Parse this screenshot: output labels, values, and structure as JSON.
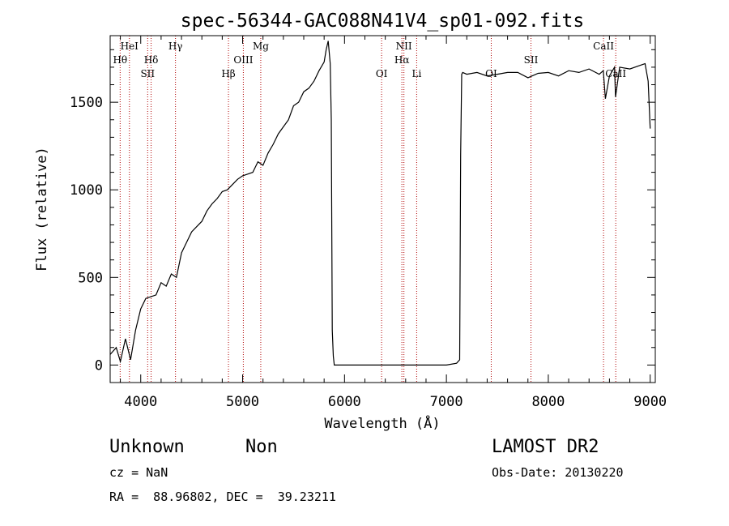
{
  "chart_data": {
    "type": "line",
    "title": "spec-56344-GAC088N41V4_sp01-092.fits",
    "xlabel": "Wavelength (Å)",
    "ylabel": "Flux (relative)",
    "xlim": [
      3700,
      9050
    ],
    "ylim": [
      -100,
      1880
    ],
    "xticks": [
      4000,
      5000,
      6000,
      7000,
      8000,
      9000
    ],
    "xtick_labels": [
      "4000",
      "5000",
      "6000",
      "7000",
      "8000",
      "9000"
    ],
    "yticks": [
      0,
      500,
      1000,
      1500
    ],
    "ytick_labels": [
      "0",
      "500",
      "1000",
      "1500"
    ],
    "grid": false,
    "legend": "none",
    "series": [
      {
        "color": "#000000",
        "x": [
          3700,
          3760,
          3800,
          3850,
          3900,
          3950,
          4000,
          4050,
          4100,
          4150,
          4200,
          4250,
          4300,
          4350,
          4400,
          4450,
          4500,
          4550,
          4600,
          4650,
          4700,
          4750,
          4800,
          4850,
          4900,
          4950,
          5000,
          5050,
          5100,
          5150,
          5200,
          5250,
          5300,
          5350,
          5400,
          5450,
          5500,
          5550,
          5600,
          5650,
          5700,
          5750,
          5800,
          5820,
          5840,
          5860,
          5870,
          5880,
          5890,
          5900,
          5950,
          6000,
          6500,
          7000,
          7100,
          7130,
          7140,
          7150,
          7160,
          7200,
          7300,
          7400,
          7500,
          7600,
          7700,
          7800,
          7900,
          8000,
          8100,
          8200,
          8300,
          8400,
          8500,
          8540,
          8560,
          8600,
          8650,
          8660,
          8700,
          8800,
          8900,
          8950,
          8980,
          9000
        ],
        "y": [
          60,
          100,
          20,
          150,
          30,
          200,
          320,
          380,
          390,
          400,
          470,
          450,
          520,
          500,
          640,
          700,
          760,
          790,
          820,
          880,
          920,
          950,
          990,
          1000,
          1030,
          1060,
          1080,
          1090,
          1100,
          1160,
          1140,
          1210,
          1260,
          1320,
          1360,
          1400,
          1480,
          1500,
          1560,
          1580,
          1620,
          1680,
          1730,
          1800,
          1850,
          1720,
          1400,
          200,
          50,
          0,
          0,
          0,
          0,
          0,
          10,
          30,
          1200,
          1660,
          1670,
          1660,
          1670,
          1650,
          1660,
          1670,
          1670,
          1640,
          1665,
          1670,
          1650,
          1680,
          1670,
          1690,
          1660,
          1680,
          1520,
          1650,
          1700,
          1530,
          1700,
          1690,
          1710,
          1720,
          1620,
          1350
        ]
      }
    ],
    "annotations": [
      {
        "label": "Hθ",
        "x": 3798,
        "row": 2
      },
      {
        "label": "HeI",
        "x": 3889,
        "row": 1
      },
      {
        "label": "SII",
        "x": 4068,
        "row": 3
      },
      {
        "label": "Hδ",
        "x": 4102,
        "row": 2
      },
      {
        "label": "Hγ",
        "x": 4341,
        "row": 1
      },
      {
        "label": "Hβ",
        "x": 4861,
        "row": 3
      },
      {
        "label": "OIII",
        "x": 5007,
        "row": 2
      },
      {
        "label": "Mg",
        "x": 5178,
        "row": 1
      },
      {
        "label": "OI",
        "x": 6364,
        "row": 3
      },
      {
        "label": "NII",
        "x": 6583,
        "row": 1
      },
      {
        "label": "Hα",
        "x": 6563,
        "row": 2
      },
      {
        "label": "Li",
        "x": 6708,
        "row": 3
      },
      {
        "label": "OI",
        "x": 7440,
        "row": 3
      },
      {
        "label": "SII",
        "x": 7830,
        "row": 2
      },
      {
        "label": "CaII",
        "x": 8542,
        "row": 1
      },
      {
        "label": "CaII",
        "x": 8662,
        "row": 3
      }
    ]
  },
  "info": {
    "class": "Unknown",
    "subclass": "Non",
    "survey": "LAMOST DR2",
    "cz": "cz = NaN",
    "obs_date": "Obs-Date: 20130220",
    "radec": "RA =  88.96802, DEC =  39.23211"
  },
  "colors": {
    "spectrum": "#000000",
    "line_markers": "#b00000",
    "text": "#000000"
  }
}
